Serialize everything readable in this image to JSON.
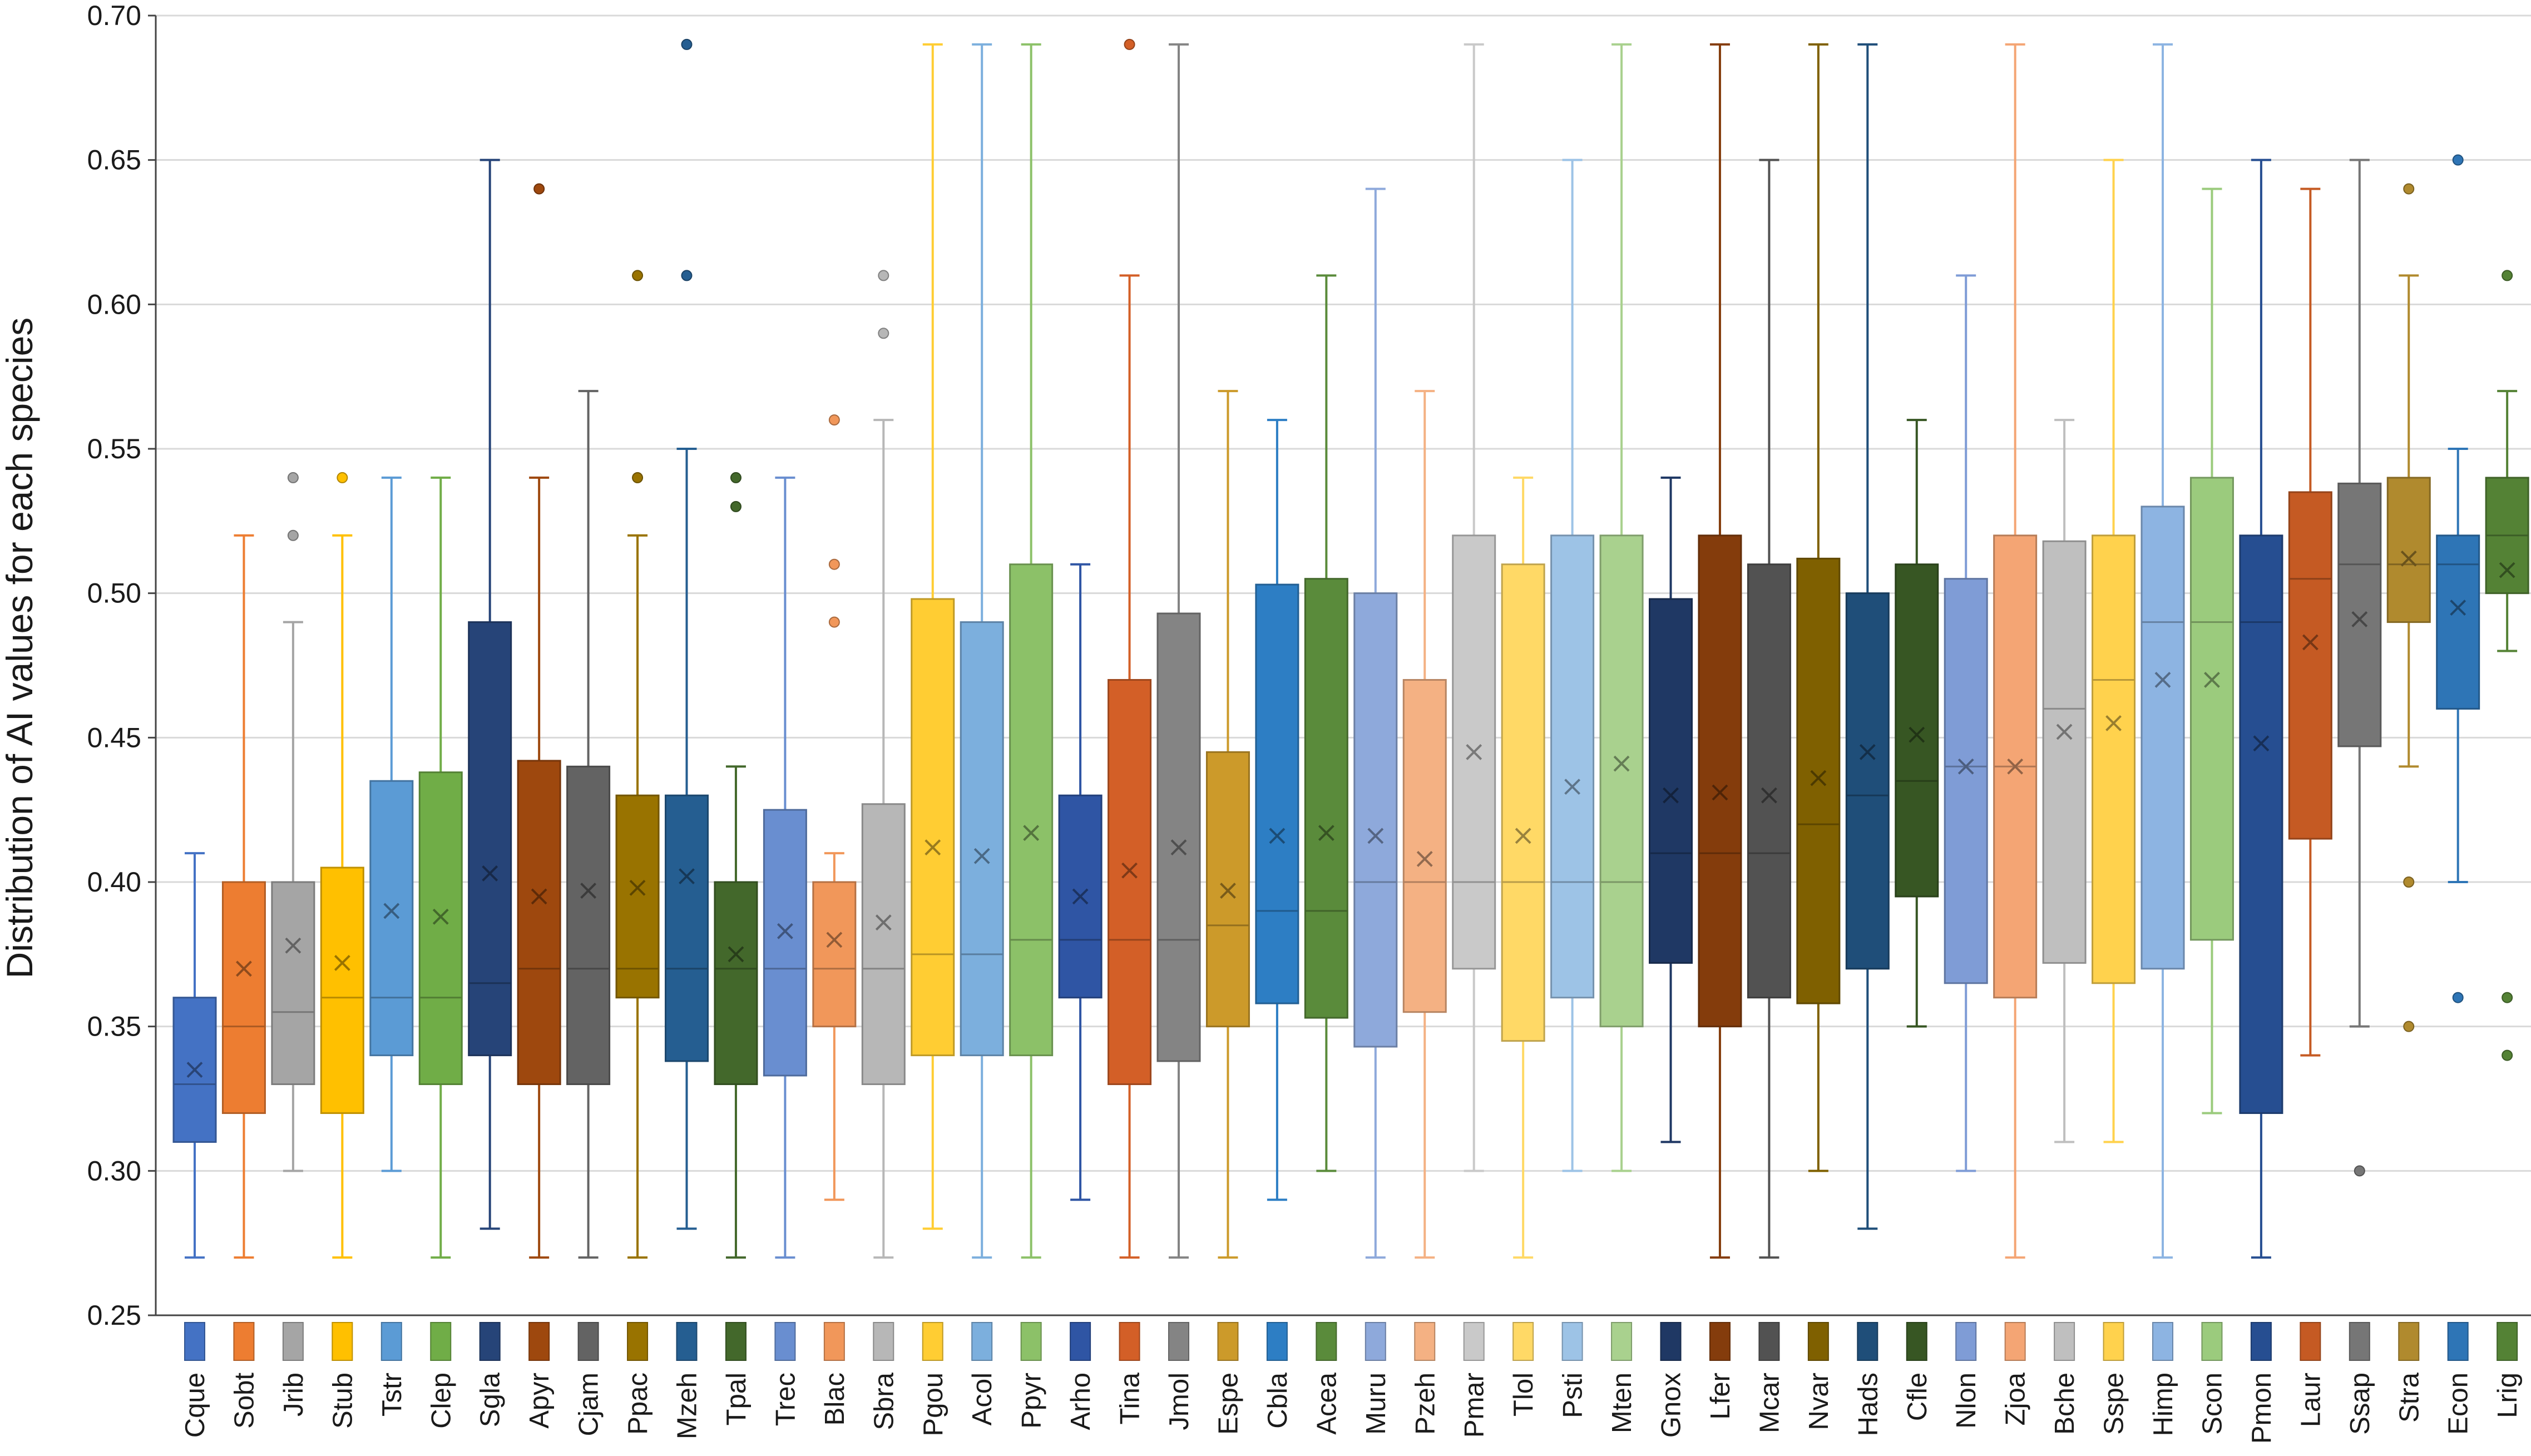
{
  "chart_data": {
    "type": "box",
    "title": "",
    "xlabel": "",
    "ylabel": "Distribution of AI values for each species",
    "ylim": [
      0.25,
      0.7
    ],
    "yticks": [
      "0.25",
      "0.30",
      "0.35",
      "0.40",
      "0.45",
      "0.50",
      "0.55",
      "0.60",
      "0.65",
      "0.70"
    ],
    "grid": true,
    "series": [
      {
        "name": "Cque",
        "color": "#4472C4",
        "min": 0.27,
        "q1": 0.31,
        "median": 0.33,
        "q3": 0.36,
        "max": 0.41,
        "mean": 0.335,
        "outliers": []
      },
      {
        "name": "Sobt",
        "color": "#ED7D31",
        "min": 0.27,
        "q1": 0.32,
        "median": 0.35,
        "q3": 0.4,
        "max": 0.52,
        "mean": 0.37,
        "outliers": []
      },
      {
        "name": "Jrib",
        "color": "#A5A5A5",
        "min": 0.3,
        "q1": 0.33,
        "median": 0.355,
        "q3": 0.4,
        "max": 0.49,
        "mean": 0.378,
        "outliers": [
          0.52,
          0.54
        ]
      },
      {
        "name": "Stub",
        "color": "#FFC000",
        "min": 0.27,
        "q1": 0.32,
        "median": 0.36,
        "q3": 0.405,
        "max": 0.52,
        "mean": 0.372,
        "outliers": [
          0.54
        ]
      },
      {
        "name": "Tstr",
        "color": "#5B9BD5",
        "min": 0.3,
        "q1": 0.34,
        "median": 0.36,
        "q3": 0.435,
        "max": 0.54,
        "mean": 0.39,
        "outliers": []
      },
      {
        "name": "Clep",
        "color": "#70AD47",
        "min": 0.27,
        "q1": 0.33,
        "median": 0.36,
        "q3": 0.438,
        "max": 0.54,
        "mean": 0.388,
        "outliers": []
      },
      {
        "name": "Sgla",
        "color": "#264478",
        "min": 0.28,
        "q1": 0.34,
        "median": 0.365,
        "q3": 0.49,
        "max": 0.65,
        "mean": 0.403,
        "outliers": []
      },
      {
        "name": "Apyr",
        "color": "#9E480E",
        "min": 0.27,
        "q1": 0.33,
        "median": 0.37,
        "q3": 0.442,
        "max": 0.54,
        "mean": 0.395,
        "outliers": [
          0.64
        ]
      },
      {
        "name": "Cjam",
        "color": "#636363",
        "min": 0.27,
        "q1": 0.33,
        "median": 0.37,
        "q3": 0.44,
        "max": 0.57,
        "mean": 0.397,
        "outliers": []
      },
      {
        "name": "Ppac",
        "color": "#997300",
        "min": 0.27,
        "q1": 0.36,
        "median": 0.37,
        "q3": 0.43,
        "max": 0.52,
        "mean": 0.398,
        "outliers": [
          0.54,
          0.61
        ]
      },
      {
        "name": "Mzeh",
        "color": "#255E91",
        "min": 0.28,
        "q1": 0.338,
        "median": 0.37,
        "q3": 0.43,
        "max": 0.55,
        "mean": 0.402,
        "outliers": [
          0.61,
          0.69
        ]
      },
      {
        "name": "Tpal",
        "color": "#43682B",
        "min": 0.27,
        "q1": 0.33,
        "median": 0.37,
        "q3": 0.4,
        "max": 0.44,
        "mean": 0.375,
        "outliers": [
          0.53,
          0.54
        ]
      },
      {
        "name": "Trec",
        "color": "#698ED0",
        "min": 0.27,
        "q1": 0.333,
        "median": 0.37,
        "q3": 0.425,
        "max": 0.54,
        "mean": 0.383,
        "outliers": []
      },
      {
        "name": "Blac",
        "color": "#F1975A",
        "min": 0.29,
        "q1": 0.35,
        "median": 0.37,
        "q3": 0.4,
        "max": 0.41,
        "mean": 0.38,
        "outliers": [
          0.49,
          0.51,
          0.56
        ]
      },
      {
        "name": "Sbra",
        "color": "#B7B7B7",
        "min": 0.27,
        "q1": 0.33,
        "median": 0.37,
        "q3": 0.427,
        "max": 0.56,
        "mean": 0.386,
        "outliers": [
          0.59,
          0.61
        ]
      },
      {
        "name": "Pgou",
        "color": "#FFCD33",
        "min": 0.28,
        "q1": 0.34,
        "median": 0.375,
        "q3": 0.498,
        "max": 0.69,
        "mean": 0.412,
        "outliers": []
      },
      {
        "name": "Acol",
        "color": "#7CAFDD",
        "min": 0.27,
        "q1": 0.34,
        "median": 0.375,
        "q3": 0.49,
        "max": 0.69,
        "mean": 0.409,
        "outliers": []
      },
      {
        "name": "Ppyr",
        "color": "#8CC168",
        "min": 0.27,
        "q1": 0.34,
        "median": 0.38,
        "q3": 0.51,
        "max": 0.69,
        "mean": 0.417,
        "outliers": []
      },
      {
        "name": "Arho",
        "color": "#2F55A4",
        "min": 0.29,
        "q1": 0.36,
        "median": 0.38,
        "q3": 0.43,
        "max": 0.51,
        "mean": 0.395,
        "outliers": []
      },
      {
        "name": "Tina",
        "color": "#D35F27",
        "min": 0.27,
        "q1": 0.33,
        "median": 0.38,
        "q3": 0.47,
        "max": 0.61,
        "mean": 0.404,
        "outliers": [
          0.69
        ]
      },
      {
        "name": "Jmol",
        "color": "#848484",
        "min": 0.27,
        "q1": 0.338,
        "median": 0.38,
        "q3": 0.493,
        "max": 0.69,
        "mean": 0.412,
        "outliers": []
      },
      {
        "name": "Espe",
        "color": "#CC9A2A",
        "min": 0.27,
        "q1": 0.35,
        "median": 0.385,
        "q3": 0.445,
        "max": 0.57,
        "mean": 0.397,
        "outliers": []
      },
      {
        "name": "Cbla",
        "color": "#2D7EC4",
        "min": 0.29,
        "q1": 0.358,
        "median": 0.39,
        "q3": 0.503,
        "max": 0.56,
        "mean": 0.416,
        "outliers": []
      },
      {
        "name": "Acea",
        "color": "#5A8B3B",
        "min": 0.3,
        "q1": 0.353,
        "median": 0.39,
        "q3": 0.505,
        "max": 0.61,
        "mean": 0.417,
        "outliers": []
      },
      {
        "name": "Muru",
        "color": "#8EA9DB",
        "min": 0.27,
        "q1": 0.343,
        "median": 0.4,
        "q3": 0.5,
        "max": 0.64,
        "mean": 0.416,
        "outliers": []
      },
      {
        "name": "Pzeh",
        "color": "#F4B183",
        "min": 0.27,
        "q1": 0.355,
        "median": 0.4,
        "q3": 0.47,
        "max": 0.57,
        "mean": 0.408,
        "outliers": []
      },
      {
        "name": "Pmar",
        "color": "#C9C9C9",
        "min": 0.3,
        "q1": 0.37,
        "median": 0.4,
        "q3": 0.52,
        "max": 0.69,
        "mean": 0.445,
        "outliers": []
      },
      {
        "name": "Tlol",
        "color": "#FFD966",
        "min": 0.27,
        "q1": 0.345,
        "median": 0.4,
        "q3": 0.51,
        "max": 0.54,
        "mean": 0.416,
        "outliers": []
      },
      {
        "name": "Psti",
        "color": "#9DC3E6",
        "min": 0.3,
        "q1": 0.36,
        "median": 0.4,
        "q3": 0.52,
        "max": 0.65,
        "mean": 0.433,
        "outliers": []
      },
      {
        "name": "Mten",
        "color": "#A9D18E",
        "min": 0.3,
        "q1": 0.35,
        "median": 0.4,
        "q3": 0.52,
        "max": 0.69,
        "mean": 0.441,
        "outliers": []
      },
      {
        "name": "Gnox",
        "color": "#1F3864",
        "min": 0.31,
        "q1": 0.372,
        "median": 0.41,
        "q3": 0.498,
        "max": 0.54,
        "mean": 0.43,
        "outliers": []
      },
      {
        "name": "Lfer",
        "color": "#843C0C",
        "min": 0.27,
        "q1": 0.35,
        "median": 0.41,
        "q3": 0.52,
        "max": 0.69,
        "mean": 0.431,
        "outliers": []
      },
      {
        "name": "Mcar",
        "color": "#525252",
        "min": 0.27,
        "q1": 0.36,
        "median": 0.41,
        "q3": 0.51,
        "max": 0.65,
        "mean": 0.43,
        "outliers": []
      },
      {
        "name": "Nvar",
        "color": "#7F6000",
        "min": 0.3,
        "q1": 0.358,
        "median": 0.42,
        "q3": 0.512,
        "max": 0.69,
        "mean": 0.436,
        "outliers": []
      },
      {
        "name": "Hads",
        "color": "#1F4E79",
        "min": 0.28,
        "q1": 0.37,
        "median": 0.43,
        "q3": 0.5,
        "max": 0.69,
        "mean": 0.445,
        "outliers": []
      },
      {
        "name": "Cfle",
        "color": "#375623",
        "min": 0.35,
        "q1": 0.395,
        "median": 0.435,
        "q3": 0.51,
        "max": 0.56,
        "mean": 0.451,
        "outliers": []
      },
      {
        "name": "Nlon",
        "color": "#7F9CD6",
        "min": 0.3,
        "q1": 0.365,
        "median": 0.44,
        "q3": 0.505,
        "max": 0.61,
        "mean": 0.44,
        "outliers": []
      },
      {
        "name": "Zjoa",
        "color": "#F4A574",
        "min": 0.27,
        "q1": 0.36,
        "median": 0.44,
        "q3": 0.52,
        "max": 0.69,
        "mean": 0.44,
        "outliers": []
      },
      {
        "name": "Bche",
        "color": "#BFBFBF",
        "min": 0.31,
        "q1": 0.372,
        "median": 0.46,
        "q3": 0.518,
        "max": 0.56,
        "mean": 0.452,
        "outliers": []
      },
      {
        "name": "Sspe",
        "color": "#FFD24D",
        "min": 0.31,
        "q1": 0.365,
        "median": 0.47,
        "q3": 0.52,
        "max": 0.65,
        "mean": 0.455,
        "outliers": []
      },
      {
        "name": "Himp",
        "color": "#8DB4E2",
        "min": 0.27,
        "q1": 0.37,
        "median": 0.49,
        "q3": 0.53,
        "max": 0.69,
        "mean": 0.47,
        "outliers": []
      },
      {
        "name": "Scon",
        "color": "#9BCB7D",
        "min": 0.32,
        "q1": 0.38,
        "median": 0.49,
        "q3": 0.54,
        "max": 0.64,
        "mean": 0.47,
        "outliers": []
      },
      {
        "name": "Pmon",
        "color": "#264E91",
        "min": 0.27,
        "q1": 0.32,
        "median": 0.49,
        "q3": 0.52,
        "max": 0.65,
        "mean": 0.448,
        "outliers": []
      },
      {
        "name": "Laur",
        "color": "#C55A23",
        "min": 0.34,
        "q1": 0.415,
        "median": 0.505,
        "q3": 0.535,
        "max": 0.64,
        "mean": 0.483,
        "outliers": []
      },
      {
        "name": "Ssap",
        "color": "#767676",
        "min": 0.35,
        "q1": 0.447,
        "median": 0.51,
        "q3": 0.538,
        "max": 0.65,
        "mean": 0.491,
        "outliers": [
          0.3
        ]
      },
      {
        "name": "Stra",
        "color": "#B08A2E",
        "min": 0.44,
        "q1": 0.49,
        "median": 0.51,
        "q3": 0.54,
        "max": 0.61,
        "mean": 0.512,
        "outliers": [
          0.35,
          0.4,
          0.64
        ]
      },
      {
        "name": "Econ",
        "color": "#2E75B6",
        "min": 0.4,
        "q1": 0.46,
        "median": 0.51,
        "q3": 0.52,
        "max": 0.55,
        "mean": 0.495,
        "outliers": [
          0.36,
          0.65
        ]
      },
      {
        "name": "Lrig",
        "color": "#548235",
        "min": 0.48,
        "q1": 0.5,
        "median": 0.52,
        "q3": 0.54,
        "max": 0.57,
        "mean": 0.508,
        "outliers": [
          0.34,
          0.36,
          0.61
        ]
      }
    ]
  }
}
